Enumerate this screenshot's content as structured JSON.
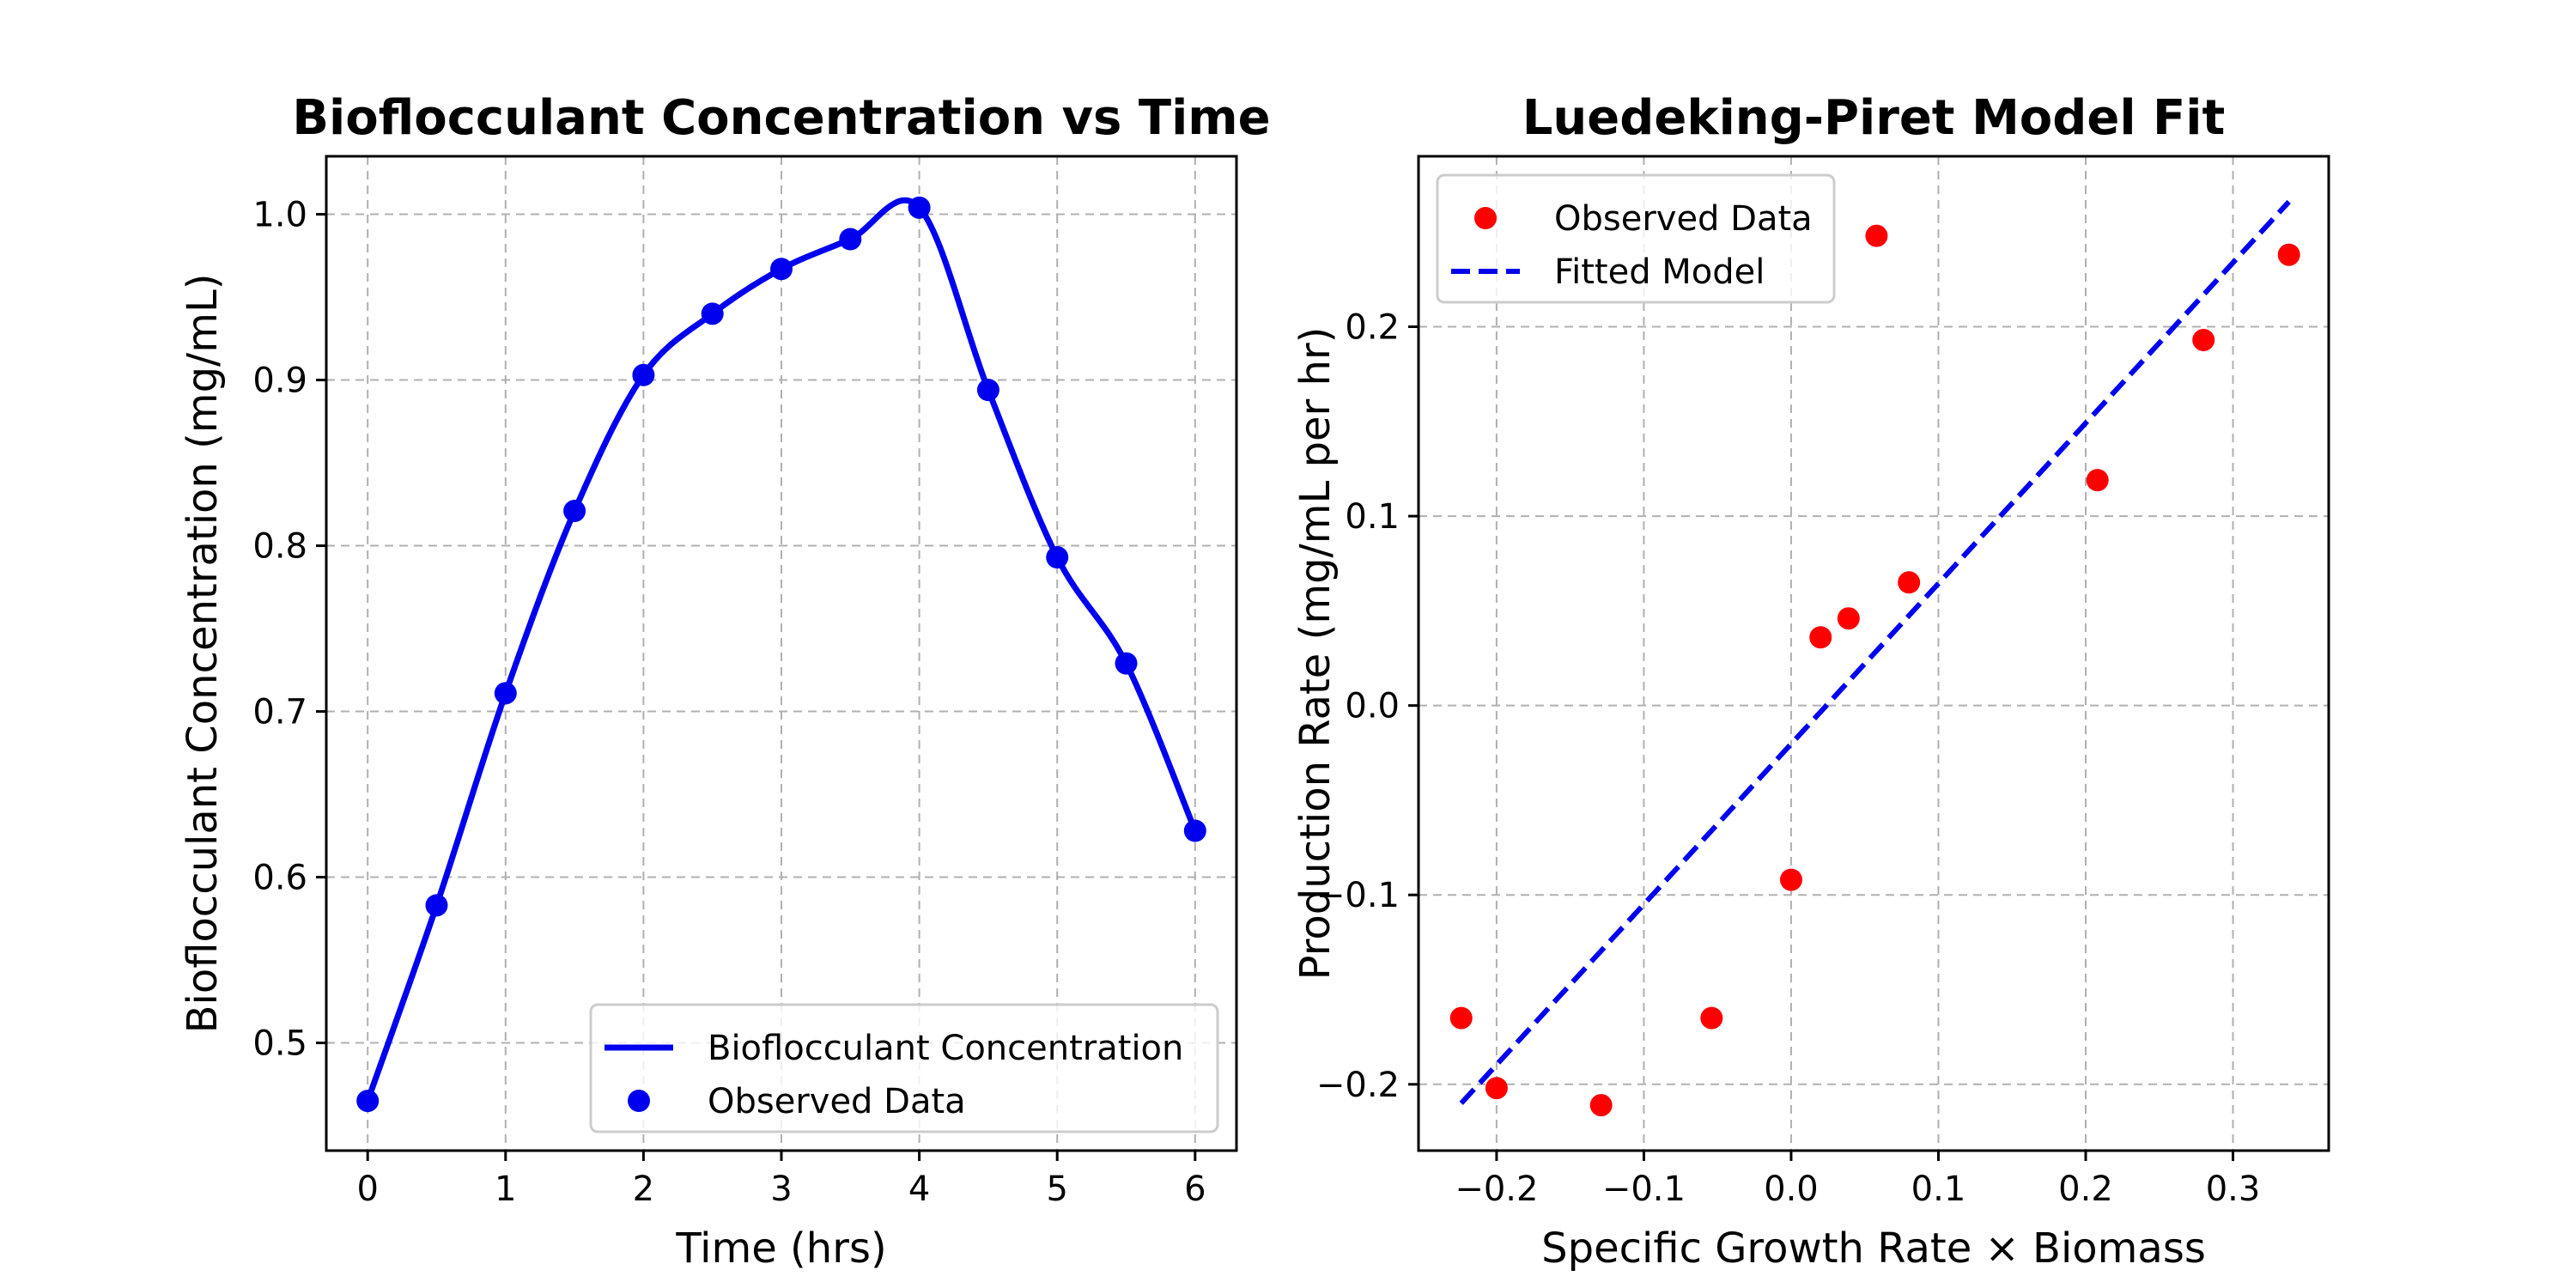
{
  "chart_data": [
    {
      "type": "line",
      "title": "Bioflocculant Concentration vs Time",
      "xlabel": "Time (hrs)",
      "ylabel": "Bioflocculant Concentration (mg/mL)",
      "xlim": [
        -0.3,
        6.3
      ],
      "ylim": [
        0.435,
        1.035
      ],
      "xticks": [
        0,
        1,
        2,
        3,
        4,
        5,
        6
      ],
      "xtick_labels": [
        "0",
        "1",
        "2",
        "3",
        "4",
        "5",
        "6"
      ],
      "yticks": [
        0.5,
        0.6,
        0.7,
        0.8,
        0.9,
        1.0
      ],
      "ytick_labels": [
        "0.5",
        "0.6",
        "0.7",
        "0.8",
        "0.9",
        "1.0"
      ],
      "grid": true,
      "legend": {
        "position": "lower-right",
        "entries": [
          {
            "label": "Bioflocculant Concentration",
            "marker": "line",
            "color": "#0000ee"
          },
          {
            "label": "Observed Data",
            "marker": "dot",
            "color": "#0000ee"
          }
        ]
      },
      "series": [
        {
          "name": "Bioflocculant Concentration",
          "style": "line",
          "color": "#0000ee",
          "x": [
            0,
            0.5,
            1,
            1.5,
            2,
            2.5,
            3,
            3.5,
            4,
            4.5,
            5,
            5.5,
            6
          ],
          "y": [
            0.465,
            0.583,
            0.711,
            0.821,
            0.903,
            0.94,
            0.967,
            0.985,
            1.004,
            0.894,
            0.793,
            0.729,
            0.628
          ]
        },
        {
          "name": "Observed Data",
          "style": "scatter",
          "color": "#0000ee",
          "x": [
            0,
            0.5,
            1,
            1.5,
            2,
            2.5,
            3,
            3.5,
            4,
            4.5,
            5,
            5.5,
            6
          ],
          "y": [
            0.465,
            0.583,
            0.711,
            0.821,
            0.903,
            0.94,
            0.967,
            0.985,
            1.004,
            0.894,
            0.793,
            0.729,
            0.628
          ]
        }
      ]
    },
    {
      "type": "scatter",
      "title": "Luedeking-Piret Model Fit",
      "xlabel": "Specific Growth Rate × Biomass",
      "ylabel": "Production Rate (mg/mL per hr)",
      "xlim": [
        -0.253,
        0.365
      ],
      "ylim": [
        -0.235,
        0.29
      ],
      "xticks": [
        -0.2,
        -0.1,
        0.0,
        0.1,
        0.2,
        0.3
      ],
      "xtick_labels": [
        "−0.2",
        "−0.1",
        "0.0",
        "0.1",
        "0.2",
        "0.3"
      ],
      "yticks": [
        -0.2,
        -0.1,
        0.0,
        0.1,
        0.2
      ],
      "ytick_labels": [
        "−0.2",
        "−0.1",
        "0.0",
        "0.1",
        "0.2"
      ],
      "grid": true,
      "legend": {
        "position": "upper-left",
        "entries": [
          {
            "label": "Observed Data",
            "marker": "dot",
            "color": "#ff0000"
          },
          {
            "label": "Fitted Model",
            "marker": "dashed-line",
            "color": "#0000ee"
          }
        ]
      },
      "series": [
        {
          "name": "Observed Data",
          "style": "scatter",
          "color": "#ff0000",
          "x": [
            -0.224,
            -0.2,
            -0.129,
            -0.054,
            0.0,
            0.02,
            0.039,
            0.058,
            0.08,
            0.208,
            0.28,
            0.338
          ],
          "y": [
            -0.165,
            -0.202,
            -0.211,
            -0.165,
            -0.092,
            0.036,
            0.046,
            0.248,
            0.065,
            0.119,
            0.193,
            0.238
          ]
        },
        {
          "name": "Fitted Model",
          "style": "dashed-line",
          "color": "#0000ee",
          "x": [
            -0.224,
            0.338
          ],
          "y": [
            -0.21,
            0.266
          ]
        }
      ]
    }
  ]
}
